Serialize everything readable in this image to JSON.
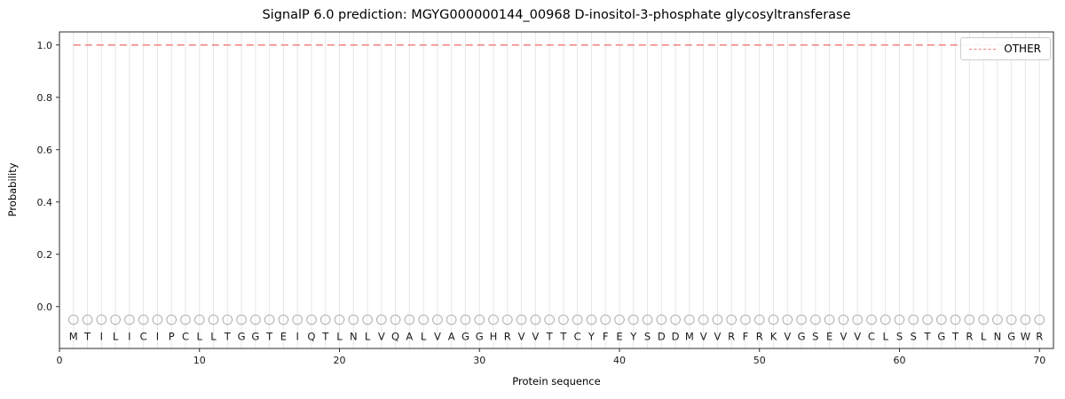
{
  "chart_data": {
    "type": "line",
    "title": "SignalP 6.0 prediction: MGYG000000144_00968 D-inositol-3-phosphate glycosyltransferase",
    "xlabel": "Protein sequence",
    "ylabel": "Probability",
    "xlim": [
      0,
      71
    ],
    "ylim": [
      -0.16,
      1.05
    ],
    "xticks": [
      0,
      10,
      20,
      30,
      40,
      50,
      60,
      70
    ],
    "yticks": [
      0.0,
      0.2,
      0.4,
      0.6,
      0.8,
      1.0
    ],
    "sequence": "MTILICIPCLLTGGTEIQTLNLVQALVAGGHRVVTTCYFEYSDDMVVRFRKVGSEVVCLSSTGTRLNGWR",
    "sequence_length": 70,
    "series": [
      {
        "name": "OTHER",
        "style": "dashed",
        "color": "#f08080",
        "constant_y": 1.0,
        "x_start": 1,
        "x_end": 70
      }
    ],
    "legend": {
      "position": "upper right"
    },
    "residue_marker_y": -0.05,
    "residue_letter_y": -0.115,
    "grid": "vertical-line-per-residue",
    "colors": {
      "gridline": "#e7e7e7",
      "marker_stroke": "#b3b3b3",
      "spine": "#2b2b2b",
      "tick_text": "#1a1a1a",
      "letter_text": "#1a1a1a"
    }
  }
}
